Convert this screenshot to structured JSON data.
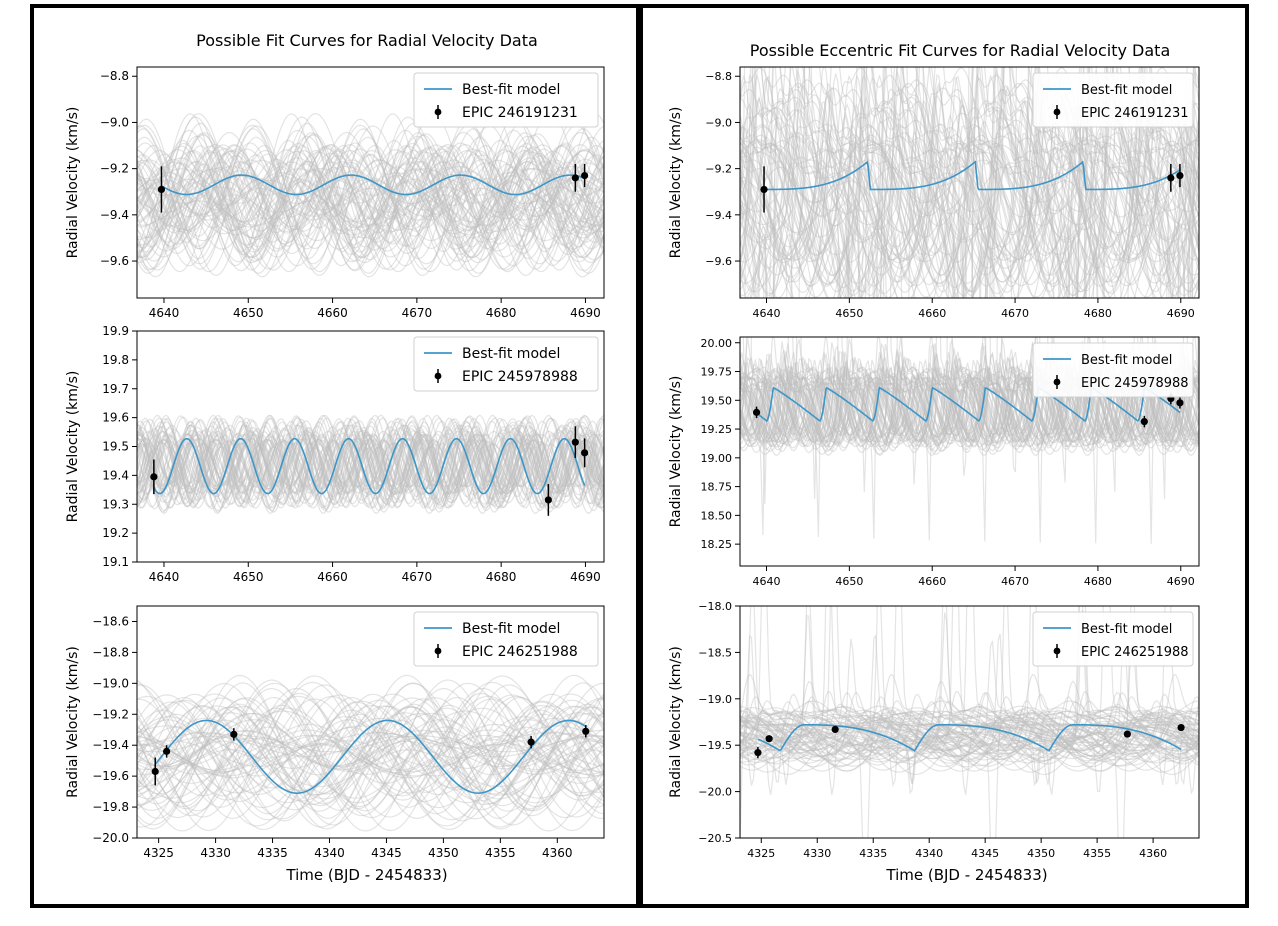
{
  "chart_data": [
    {
      "type": "line",
      "panel": "left-top",
      "title": "Possible Fit Curves for Radial Velocity Data",
      "xlabel": "",
      "ylabel": "Radial Velocity (km/s)",
      "xlim": [
        4636.8,
        4692.2
      ],
      "ylim": [
        -9.76,
        -8.76
      ],
      "xticks": [
        4640,
        4650,
        4660,
        4670,
        4680,
        4690
      ],
      "yticks": [
        -9.6,
        -9.4,
        -9.2,
        -9.0,
        -8.8
      ],
      "ytick_labels": [
        "−9.6",
        "−9.4",
        "−9.2",
        "−9.0",
        "−8.8"
      ],
      "legend": {
        "position": "top-right",
        "entries": [
          "Best-fit model",
          "EPIC 246191231"
        ]
      },
      "model": {
        "kind": "sine",
        "x_start": 4639.7,
        "x_end": 4689.9,
        "mean": -9.27,
        "amplitude": 0.042,
        "period": 13.0,
        "phase_peak_x": 4649.2
      },
      "posterior_band": {
        "count": 80,
        "amplitude_range": [
          0.05,
          0.3
        ],
        "mean_range": [
          -9.4,
          -9.25
        ]
      },
      "data_points": {
        "x": [
          4639.7,
          4688.8,
          4689.9
        ],
        "y": [
          -9.29,
          -9.24,
          -9.23
        ],
        "yerr": [
          0.1,
          0.06,
          0.05
        ]
      }
    },
    {
      "type": "line",
      "panel": "left-middle",
      "title": "",
      "xlabel": "",
      "ylabel": "Radial Velocity (km/s)",
      "xlim": [
        4636.8,
        4692.2
      ],
      "ylim": [
        19.1,
        19.9
      ],
      "xticks": [
        4640,
        4650,
        4660,
        4670,
        4680,
        4690
      ],
      "yticks": [
        19.1,
        19.2,
        19.3,
        19.4,
        19.5,
        19.6,
        19.7,
        19.8,
        19.9
      ],
      "ytick_labels": [
        "19.1",
        "19.2",
        "19.3",
        "19.4",
        "19.5",
        "19.6",
        "19.7",
        "19.8",
        "19.9"
      ],
      "legend": {
        "position": "top-right",
        "entries": [
          "Best-fit model",
          "EPIC 245978988"
        ]
      },
      "model": {
        "kind": "sine",
        "x_start": 4638.8,
        "x_end": 4689.9,
        "mean": 19.432,
        "amplitude": 0.095,
        "period": 6.4,
        "phase_peak_x": 4642.7
      },
      "posterior_band": {
        "count": 60,
        "amplitude_range": [
          0.07,
          0.16
        ],
        "mean_range": [
          19.42,
          19.46
        ]
      },
      "data_points": {
        "x": [
          4638.8,
          4685.6,
          4688.8,
          4689.9
        ],
        "y": [
          19.395,
          19.315,
          19.515,
          19.478
        ],
        "yerr": [
          0.06,
          0.055,
          0.055,
          0.05
        ]
      }
    },
    {
      "type": "line",
      "panel": "left-bottom",
      "title": "",
      "xlabel": "Time (BJD - 2454833)",
      "ylabel": "Radial Velocity (km/s)",
      "xlim": [
        4323.1,
        4364.1
      ],
      "ylim": [
        -20.0,
        -18.5
      ],
      "xticks": [
        4325,
        4330,
        4335,
        4340,
        4345,
        4350,
        4355,
        4360
      ],
      "yticks": [
        -20.0,
        -19.8,
        -19.6,
        -19.4,
        -19.2,
        -19.0,
        -18.8,
        -18.6
      ],
      "ytick_labels": [
        "−20.0",
        "−19.8",
        "−19.6",
        "−19.4",
        "−19.2",
        "−19.0",
        "−18.8",
        "−18.6"
      ],
      "legend": {
        "position": "top-right",
        "entries": [
          "Best-fit model",
          "EPIC 246251988"
        ]
      },
      "model": {
        "kind": "sine",
        "x_start": 4324.7,
        "x_end": 4362.5,
        "mean": -19.475,
        "amplitude": 0.235,
        "period": 15.9,
        "phase_peak_x": 4329.2
      },
      "posterior_band": {
        "count": 70,
        "amplitude_range": [
          0.02,
          0.45
        ],
        "mean_range": [
          -19.55,
          -19.35
        ]
      },
      "data_points": {
        "x": [
          4324.7,
          4325.7,
          4331.6,
          4357.7,
          4362.5
        ],
        "y": [
          -19.57,
          -19.44,
          -19.33,
          -19.38,
          -19.31
        ],
        "yerr": [
          0.09,
          0.04,
          0.04,
          0.04,
          0.04
        ]
      }
    },
    {
      "type": "line",
      "panel": "right-top",
      "title": "Possible Eccentric Fit Curves for Radial Velocity Data",
      "xlabel": "",
      "ylabel": "Radial Velocity (km/s)",
      "xlim": [
        4636.8,
        4692.2
      ],
      "ylim": [
        -9.76,
        -8.76
      ],
      "xticks": [
        4640,
        4650,
        4660,
        4670,
        4680,
        4690
      ],
      "yticks": [
        -9.6,
        -9.4,
        -9.2,
        -9.0,
        -8.8
      ],
      "ytick_labels": [
        "−9.6",
        "−9.4",
        "−9.2",
        "−9.0",
        "−8.8"
      ],
      "legend": {
        "position": "top-right",
        "entries": [
          "Best-fit model",
          "EPIC 246191231"
        ]
      },
      "model": {
        "kind": "sawtooth",
        "x_start": 4639.7,
        "x_end": 4689.9,
        "low": -9.29,
        "high": -9.17,
        "period": 13.0,
        "peak_x": 4652.2
      },
      "posterior_band": {
        "count": 70,
        "amplitude_range": [
          0.1,
          0.5
        ],
        "mean_range": [
          -9.4,
          -9.2
        ]
      },
      "data_points": {
        "x": [
          4639.7,
          4688.8,
          4689.9
        ],
        "y": [
          -9.29,
          -9.24,
          -9.23
        ],
        "yerr": [
          0.1,
          0.06,
          0.05
        ]
      }
    },
    {
      "type": "line",
      "panel": "right-middle",
      "title": "",
      "xlabel": "",
      "ylabel": "Radial Velocity (km/s)",
      "xlim": [
        4636.8,
        4692.2
      ],
      "ylim": [
        18.06,
        20.05
      ],
      "xticks": [
        4640,
        4650,
        4660,
        4670,
        4680,
        4690
      ],
      "yticks": [
        18.25,
        18.5,
        18.75,
        19.0,
        19.25,
        19.5,
        19.75,
        20.0
      ],
      "ytick_labels": [
        "18.25",
        "18.50",
        "18.75",
        "19.00",
        "19.25",
        "19.50",
        "19.75",
        "20.00"
      ],
      "legend": {
        "position": "top-right",
        "entries": [
          "Best-fit model",
          "EPIC 245978988"
        ]
      },
      "model": {
        "kind": "sawtooth-reverse",
        "x_start": 4638.8,
        "x_end": 4689.9,
        "low": 19.32,
        "high": 19.61,
        "period": 6.4,
        "peak_x": 4640.8
      },
      "posterior_band": {
        "count": 60,
        "amplitude_range": [
          0.2,
          0.35
        ],
        "mean_range": [
          19.4,
          19.5
        ]
      },
      "data_points": {
        "x": [
          4638.8,
          4685.6,
          4688.8,
          4689.9
        ],
        "y": [
          19.395,
          19.315,
          19.515,
          19.478
        ],
        "yerr": [
          0.05,
          0.05,
          0.05,
          0.05
        ]
      }
    },
    {
      "type": "line",
      "panel": "right-bottom",
      "title": "",
      "xlabel": "Time (BJD - 2454833)",
      "ylabel": "Radial Velocity (km/s)",
      "xlim": [
        4323.1,
        4364.1
      ],
      "ylim": [
        -20.5,
        -18.0
      ],
      "xticks": [
        4325,
        4330,
        4335,
        4340,
        4345,
        4350,
        4355,
        4360
      ],
      "yticks": [
        -20.5,
        -20.0,
        -19.5,
        -19.0,
        -18.5,
        -18.0
      ],
      "ytick_labels": [
        "−20.5",
        "−20.0",
        "−19.5",
        "−19.0",
        "−18.5",
        "−18.0"
      ],
      "legend": {
        "position": "top-right",
        "entries": [
          "Best-fit model",
          "EPIC 246251988"
        ]
      },
      "model": {
        "kind": "eccentric-long",
        "x_start": 4324.7,
        "x_end": 4362.5,
        "low": -19.56,
        "high": -19.28,
        "period": 12.0,
        "peak_x": 4328.7
      },
      "posterior_band": {
        "count": 70,
        "amplitude_range": [
          0.05,
          0.35
        ],
        "mean_range": [
          -19.45,
          -19.35
        ]
      },
      "data_points": {
        "x": [
          4324.7,
          4325.7,
          4331.6,
          4357.7,
          4362.5
        ],
        "y": [
          -19.58,
          -19.43,
          -19.33,
          -19.38,
          -19.31
        ],
        "yerr": [
          0.06,
          0.03,
          0.03,
          0.03,
          0.03
        ]
      }
    }
  ]
}
